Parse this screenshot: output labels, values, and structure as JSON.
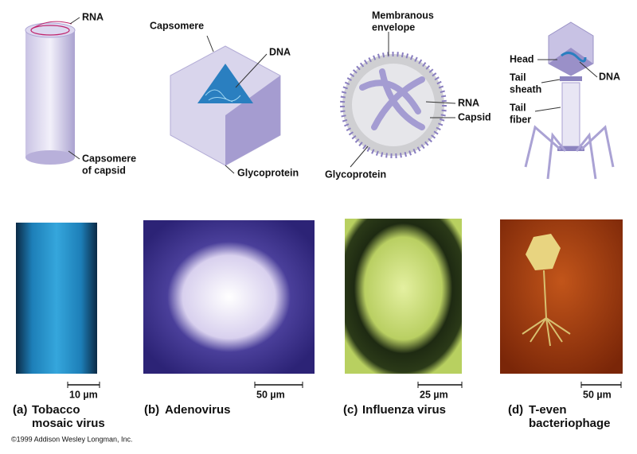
{
  "panels": [
    {
      "letter": "(a)",
      "name": [
        "Tobacco",
        "mosaic virus"
      ],
      "scale": "10 µm",
      "labels": [
        [
          "RNA"
        ],
        [
          "Capsomere",
          "of capsid"
        ]
      ]
    },
    {
      "letter": "(b)",
      "name": [
        "Adenovirus"
      ],
      "scale": "50 µm",
      "labels": [
        [
          "Capsomere"
        ],
        [
          "DNA"
        ],
        [
          "Glycoprotein"
        ]
      ]
    },
    {
      "letter": "(c)",
      "name": [
        "Influenza virus"
      ],
      "scale": "25 µm",
      "labels": [
        [
          "Membranous",
          "envelope"
        ],
        [
          "RNA"
        ],
        [
          "Capsid"
        ],
        [
          "Glycoprotein"
        ]
      ]
    },
    {
      "letter": "(d)",
      "name": [
        "T-even",
        "bacteriophage"
      ],
      "scale": "50 µm",
      "labels": [
        [
          "Head"
        ],
        [
          "DNA"
        ],
        [
          "Tail",
          "sheath"
        ],
        [
          "Tail",
          "fiber"
        ]
      ]
    }
  ],
  "copyright": "©1999 Addison Wesley Longman, Inc."
}
